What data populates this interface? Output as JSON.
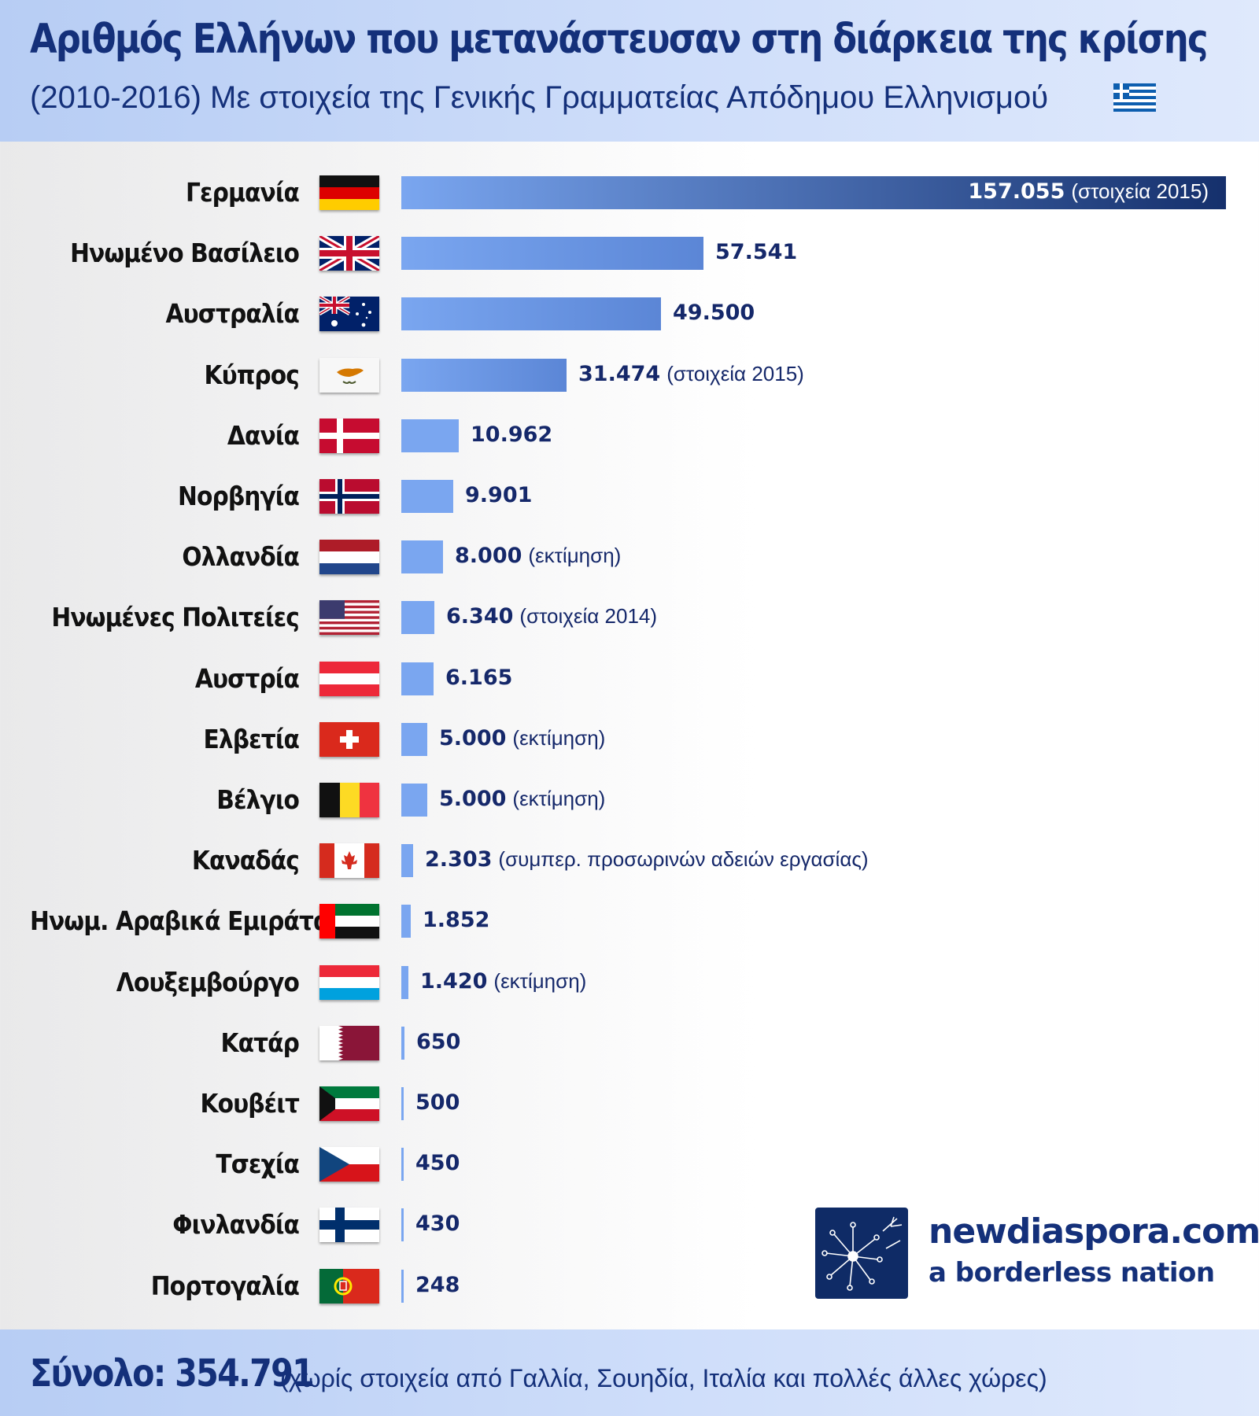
{
  "header": {
    "title": "Αριθμός Ελλήνων που μετανάστευσαν στη διάρκεια της κρίσης",
    "subtitle": "(2010-2016)  Με στοιχεία της Γενικής Γραμματείας Απόδημου Ελληνισμού",
    "subtitle_flag_icon": "greece-flag-icon"
  },
  "colors": {
    "bar_light": "#7aa6f0",
    "bar_dark": "#15306c",
    "text_dark_blue": "#15286a",
    "header_bg": "#c6d8f7"
  },
  "chart_data": {
    "type": "bar",
    "orientation": "horizontal",
    "categories": [
      "Γερμανία",
      "Ηνωμένο Βασίλειο",
      "Αυστραλία",
      "Κύπρος",
      "Δανία",
      "Νορβηγία",
      "Ολλανδία",
      "Ηνωμένες Πολιτείες",
      "Αυστρία",
      "Ελβετία",
      "Βέλγιο",
      "Καναδάς",
      "Ηνωμ. Αραβικά Εμιράτα",
      "Λουξεμβούργο",
      "Κατάρ",
      "Κουβέιτ",
      "Τσεχία",
      "Φινλανδία",
      "Πορτογαλία"
    ],
    "values": [
      157055,
      57541,
      49500,
      31474,
      10962,
      9901,
      8000,
      6340,
      6165,
      5000,
      5000,
      2303,
      1852,
      1420,
      650,
      500,
      450,
      430,
      248
    ],
    "value_labels": [
      "157.055",
      "57.541",
      "49.500",
      "31.474",
      "10.962",
      "9.901",
      "8.000",
      "6.340",
      "6.165",
      "5.000",
      "5.000",
      "2.303",
      "1.852",
      "1.420",
      "650",
      "500",
      "450",
      "430",
      "248"
    ],
    "notes": [
      "(στοιχεία 2015)",
      "",
      "",
      "(στοιχεία 2015)",
      "",
      "",
      "(εκτίμηση)",
      "(στοιχεία 2014)",
      "",
      "(εκτίμηση)",
      "(εκτίμηση)",
      "(συμπερ. προσωρινών αδειών εργασίας)",
      "",
      "(εκτίμηση)",
      "",
      "",
      "",
      "",
      ""
    ],
    "flag_icons": [
      "germany-flag-icon",
      "uk-flag-icon",
      "australia-flag-icon",
      "cyprus-flag-icon",
      "denmark-flag-icon",
      "norway-flag-icon",
      "netherlands-flag-icon",
      "usa-flag-icon",
      "austria-flag-icon",
      "switzerland-flag-icon",
      "belgium-flag-icon",
      "canada-flag-icon",
      "uae-flag-icon",
      "luxembourg-flag-icon",
      "qatar-flag-icon",
      "kuwait-flag-icon",
      "czech-flag-icon",
      "finland-flag-icon",
      "portugal-flag-icon"
    ],
    "xlim": [
      0,
      157055
    ],
    "grid": false,
    "legend": "none"
  },
  "branding": {
    "logo_icon": "dandelion-logo-icon",
    "site": "newdiaspora.com",
    "tagline": "a borderless nation"
  },
  "footer": {
    "total_label": "Σύνολο: 354.791",
    "total_note": "(χωρίς στοιχεία από Γαλλία, Σουηδία, Ιταλία και πολλές άλλες χώρες)"
  }
}
